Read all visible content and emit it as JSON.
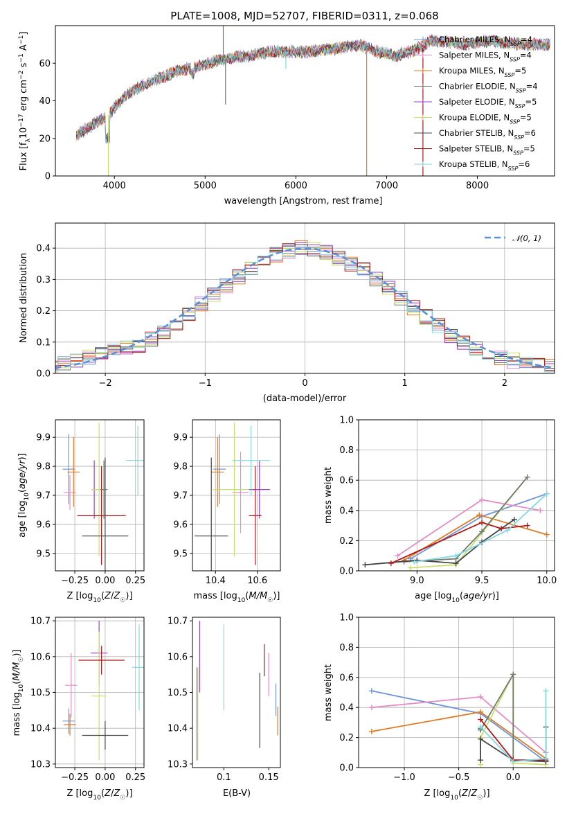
{
  "figure": {
    "title": "PLATE=1008, MJD=52707, FIBERID=0311, z=0.068"
  },
  "colors": {
    "Chabrier MILES": "#6f94d8",
    "Salpeter MILES": "#e38cc6",
    "Kroupa MILES": "#e07a23",
    "Chabrier ELODIE": "#707a70",
    "Salpeter ELODIE": "#9a3fc0",
    "Kroupa ELODIE": "#c7e06a",
    "Chabrier STELIB": "#444444",
    "Salpeter STELIB": "#b01818",
    "Kroupa STELIB": "#82d8e0",
    "normal": "#5b8fd8"
  },
  "chart_data": [
    {
      "id": "spectrum",
      "type": "line",
      "xlabel": "wavelength [Angstrom, rest frame]",
      "ylabel": "Flux [f_λ10^-17 erg cm^-2 s^-1 A^-1]",
      "xlim": [
        3350,
        8850
      ],
      "ylim": [
        0,
        80
      ],
      "xticks": [
        4000,
        5000,
        6000,
        7000,
        8000
      ],
      "yticks": [
        0,
        20,
        40,
        60
      ],
      "legend": {
        "position": "top-right",
        "entries": [
          "Chabrier MILES, N_SSP=4",
          "Salpeter MILES, N_SSP=4",
          "Kroupa MILES, N_SSP=5",
          "Chabrier ELODIE, N_SSP=4",
          "Salpeter ELODIE, N_SSP=5",
          "Kroupa ELODIE, N_SSP=5",
          "Chabrier STELIB, N_SSP=6",
          "Salpeter STELIB, N_SSP=5",
          "Kroupa STELIB, N_SSP=6"
        ]
      },
      "continuum": {
        "x": [
          3580,
          3700,
          3850,
          3950,
          4100,
          4300,
          4500,
          4700,
          4900,
          5100,
          5300,
          5500,
          5700,
          5900,
          6100,
          6300,
          6500,
          6700,
          6900,
          7100,
          7300,
          7500,
          7700,
          7900,
          8100,
          8300,
          8500,
          8800
        ],
        "y": [
          22,
          25,
          30,
          33,
          42,
          48,
          52,
          56,
          58,
          61,
          63,
          64,
          66,
          66,
          66,
          67,
          68,
          70,
          66,
          64,
          67,
          72,
          71,
          70,
          72,
          71,
          70,
          70
        ]
      },
      "spikes": [
        {
          "x": 3934,
          "y": 0,
          "series": "Kroupa ELODIE"
        },
        {
          "x": 5200,
          "y": 80,
          "series": "Chabrier ELODIE"
        },
        {
          "x": 5225,
          "y": 38,
          "series": "Chabrier ELODIE"
        },
        {
          "x": 5890,
          "y": 57,
          "series": "Kroupa STELIB"
        },
        {
          "x": 6780,
          "y": 0,
          "series": "Kroupa MILES"
        },
        {
          "x": 7400,
          "y": 0,
          "series": "Salpeter STELIB"
        }
      ]
    },
    {
      "id": "residuals",
      "type": "bar",
      "xlabel": "(data-model)/error",
      "ylabel": "Normed distribution",
      "xlim": [
        -2.5,
        2.5
      ],
      "ylim": [
        0,
        0.48
      ],
      "xticks": [
        -2,
        -1,
        0,
        1,
        2
      ],
      "yticks": [
        0.0,
        0.1,
        0.2,
        0.3,
        0.4
      ],
      "grid": true,
      "legend": {
        "position": "top-right",
        "entries": [
          "𝒩(0, 1)"
        ]
      },
      "bin_width": 0.1,
      "envelope": [
        0.02,
        0.03,
        0.04,
        0.05,
        0.06,
        0.07,
        0.08,
        0.09,
        0.11,
        0.13,
        0.16,
        0.19,
        0.22,
        0.25,
        0.28,
        0.31,
        0.34,
        0.36,
        0.38,
        0.39,
        0.4,
        0.395,
        0.385,
        0.37,
        0.35,
        0.33,
        0.3,
        0.27,
        0.24,
        0.21,
        0.18,
        0.15,
        0.12,
        0.1,
        0.08,
        0.065,
        0.05,
        0.04,
        0.035,
        0.03,
        0.025,
        0.02
      ]
    },
    {
      "id": "age_vs_Z",
      "type": "scatter",
      "xlabel": "Z [log10(Z/Z☉)]",
      "ylabel": "age  [log10(age/yr)]",
      "xlim": [
        -0.41,
        0.32
      ],
      "ylim": [
        9.44,
        9.96
      ],
      "xticks": [
        -0.25,
        0.0,
        0.25
      ],
      "yticks": [
        9.5,
        9.6,
        9.7,
        9.8,
        9.9
      ],
      "grid": true,
      "points": [
        {
          "series": "Chabrier MILES",
          "x": -0.3,
          "y": 9.79,
          "xerr": 0.05,
          "yerr": 0.12
        },
        {
          "series": "Kroupa MILES",
          "x": -0.26,
          "y": 9.78,
          "xerr": 0.05,
          "yerr": 0.12
        },
        {
          "series": "Salpeter MILES",
          "x": -0.29,
          "y": 9.71,
          "xerr": 0.05,
          "yerr": 0.06
        },
        {
          "series": "Salpeter ELODIE",
          "x": -0.09,
          "y": 9.72,
          "xerr": 0.02,
          "yerr": 0.1
        },
        {
          "series": "Kroupa ELODIE",
          "x": -0.05,
          "y": 9.72,
          "xerr": 0.06,
          "yerr": 0.23
        },
        {
          "series": "Salpeter STELIB",
          "x": -0.03,
          "y": 9.63,
          "xerr": 0.2,
          "yerr": 0.17
        },
        {
          "series": "Chabrier STELIB",
          "x": 0.0,
          "y": 9.56,
          "xerr": 0.19,
          "yerr": 0.27
        },
        {
          "series": "Chabrier ELODIE",
          "x": -0.01,
          "y": 9.72,
          "xerr": 0.03,
          "yerr": 0.1
        },
        {
          "series": "Kroupa STELIB",
          "x": 0.27,
          "y": 9.82,
          "xerr": 0.1,
          "yerr": 0.12
        }
      ]
    },
    {
      "id": "age_vs_mass",
      "type": "scatter",
      "xlabel": "mass [log10(M/M☉)]",
      "ylabel": "",
      "xlim": [
        10.29,
        10.71
      ],
      "ylim": [
        9.44,
        9.96
      ],
      "xticks": [
        10.4,
        10.6
      ],
      "yticks": [
        9.5,
        9.6,
        9.7,
        9.8,
        9.9
      ],
      "grid": true,
      "points": [
        {
          "series": "Chabrier MILES",
          "x": 10.42,
          "y": 9.79,
          "xerr": 0.03,
          "yerr": 0.12
        },
        {
          "series": "Kroupa MILES",
          "x": 10.41,
          "y": 9.78,
          "xerr": 0.03,
          "yerr": 0.12
        },
        {
          "series": "Salpeter MILES",
          "x": 10.52,
          "y": 9.71,
          "xerr": 0.04,
          "yerr": 0.14
        },
        {
          "series": "Chabrier STELIB",
          "x": 10.38,
          "y": 9.56,
          "xerr": 0.08,
          "yerr": 0.27
        },
        {
          "series": "Kroupa ELODIE",
          "x": 10.49,
          "y": 9.72,
          "xerr": 0.1,
          "yerr": 0.23
        },
        {
          "series": "Salpeter ELODIE",
          "x": 10.61,
          "y": 9.72,
          "xerr": 0.05,
          "yerr": 0.1
        },
        {
          "series": "Salpeter STELIB",
          "x": 10.59,
          "y": 9.63,
          "xerr": 0.03,
          "yerr": 0.17
        },
        {
          "series": "Kroupa STELIB",
          "x": 10.57,
          "y": 9.82,
          "xerr": 0.09,
          "yerr": 0.12
        }
      ]
    },
    {
      "id": "weight_vs_age",
      "type": "line",
      "xlabel": "age  [log10(age/yr)]",
      "ylabel": "mass weight",
      "xlim": [
        8.55,
        10.06
      ],
      "ylim": [
        0,
        1.0
      ],
      "xticks": [
        9.0,
        9.5,
        10.0
      ],
      "yticks": [
        0.0,
        0.2,
        0.4,
        0.6,
        0.8,
        1.0
      ],
      "grid": true,
      "series": [
        {
          "series": "Chabrier MILES",
          "x": [
            8.95,
            9.5,
            10.0
          ],
          "y": [
            0.08,
            0.36,
            0.51
          ]
        },
        {
          "series": "Salpeter MILES",
          "x": [
            8.85,
            9.5,
            9.95
          ],
          "y": [
            0.1,
            0.47,
            0.4
          ]
        },
        {
          "series": "Kroupa MILES",
          "x": [
            8.9,
            9.48,
            10.0
          ],
          "y": [
            0.07,
            0.37,
            0.24
          ]
        },
        {
          "series": "Kroupa ELODIE",
          "x": [
            8.95,
            9.3,
            9.85
          ],
          "y": [
            0.02,
            0.04,
            0.62
          ]
        },
        {
          "series": "Chabrier ELODIE",
          "x": [
            8.9,
            9.3,
            9.5,
            9.85
          ],
          "y": [
            0.06,
            0.08,
            0.26,
            0.62
          ]
        },
        {
          "series": "Chabrier STELIB",
          "x": [
            8.6,
            9.0,
            9.3,
            9.5,
            9.75
          ],
          "y": [
            0.04,
            0.07,
            0.05,
            0.19,
            0.34
          ]
        },
        {
          "series": "Salpeter STELIB",
          "x": [
            8.8,
            9.5,
            9.65,
            9.85
          ],
          "y": [
            0.05,
            0.32,
            0.28,
            0.3
          ]
        },
        {
          "series": "Kroupa STELIB",
          "x": [
            8.98,
            9.3,
            9.7,
            10.0
          ],
          "y": [
            0.06,
            0.1,
            0.27,
            0.51
          ]
        }
      ]
    },
    {
      "id": "mass_vs_Z",
      "type": "scatter",
      "xlabel": "Z [log10(Z/Z☉)]",
      "ylabel": "mass [log10(M/M☉)]",
      "xlim": [
        -0.41,
        0.32
      ],
      "ylim": [
        10.29,
        10.71
      ],
      "xticks": [
        -0.25,
        0.0,
        0.25
      ],
      "yticks": [
        10.3,
        10.4,
        10.5,
        10.6,
        10.7
      ],
      "grid": true,
      "points": [
        {
          "series": "Chabrier MILES",
          "x": -0.3,
          "y": 10.42,
          "xerr": 0.05,
          "yerr": 0.035
        },
        {
          "series": "Kroupa MILES",
          "x": -0.29,
          "y": 10.41,
          "xerr": 0.05,
          "yerr": 0.03
        },
        {
          "series": "Salpeter MILES",
          "x": -0.28,
          "y": 10.52,
          "xerr": 0.05,
          "yerr": 0.09
        },
        {
          "series": "Salpeter ELODIE",
          "x": -0.05,
          "y": 10.61,
          "xerr": 0.07,
          "yerr": 0.09
        },
        {
          "series": "Kroupa ELODIE",
          "x": -0.05,
          "y": 10.49,
          "xerr": 0.06,
          "yerr": 0.18
        },
        {
          "series": "Salpeter STELIB",
          "x": -0.03,
          "y": 10.59,
          "xerr": 0.19,
          "yerr": 0.04
        },
        {
          "series": "Chabrier STELIB",
          "x": 0.0,
          "y": 10.38,
          "xerr": 0.19,
          "yerr": 0.04
        },
        {
          "series": "Kroupa STELIB",
          "x": 0.28,
          "y": 10.57,
          "xerr": 0.06,
          "yerr": 0.12
        }
      ]
    },
    {
      "id": "mass_vs_ebv",
      "type": "scatter",
      "xlabel": "E(B-V)",
      "ylabel": "",
      "xlim": [
        0.065,
        0.163
      ],
      "ylim": [
        10.29,
        10.71
      ],
      "xticks": [
        0.1,
        0.15
      ],
      "yticks": [
        10.3,
        10.4,
        10.5,
        10.6,
        10.7
      ],
      "grid": false,
      "points": [
        {
          "series": "Chabrier ELODIE",
          "x": 0.07,
          "y": 10.44,
          "yerr": 0.13
        },
        {
          "series": "Kroupa ELODIE",
          "x": 0.071,
          "y": 10.44,
          "yerr": 0.13
        },
        {
          "series": "Salpeter ELODIE",
          "x": 0.073,
          "y": 10.6,
          "yerr": 0.1
        },
        {
          "series": "Kroupa STELIB",
          "x": 0.1,
          "y": 10.57,
          "yerr": 0.12
        },
        {
          "series": "Chabrier STELIB",
          "x": 0.14,
          "y": 10.45,
          "yerr": 0.105
        },
        {
          "series": "Salpeter STELIB",
          "x": 0.145,
          "y": 10.59,
          "yerr": 0.045
        },
        {
          "series": "Salpeter MILES",
          "x": 0.15,
          "y": 10.55,
          "yerr": 0.06
        },
        {
          "series": "Chabrier MILES",
          "x": 0.158,
          "y": 10.48,
          "yerr": 0.045
        },
        {
          "series": "Kroupa MILES",
          "x": 0.16,
          "y": 10.42,
          "yerr": 0.04
        }
      ]
    },
    {
      "id": "weight_vs_Z",
      "type": "line",
      "xlabel": "Z [log10(Z/Z☉)]",
      "ylabel": "mass weight",
      "xlim": [
        -1.42,
        0.38
      ],
      "ylim": [
        0,
        1.0
      ],
      "xticks": [
        -1.0,
        -0.5,
        0.0
      ],
      "yticks": [
        0.0,
        0.2,
        0.4,
        0.6,
        0.8,
        1.0
      ],
      "grid": true,
      "series": [
        {
          "series": "Chabrier MILES",
          "x": [
            -1.3,
            -0.3,
            0.3
          ],
          "y": [
            0.51,
            0.36,
            0.04
          ]
        },
        {
          "series": "Salpeter MILES",
          "x": [
            -1.3,
            -0.3,
            0.3
          ],
          "y": [
            0.4,
            0.47,
            0.1
          ]
        },
        {
          "series": "Kroupa MILES",
          "x": [
            -1.3,
            -0.3,
            0.3
          ],
          "y": [
            0.24,
            0.37,
            0.06
          ]
        },
        {
          "series": "Kroupa ELODIE",
          "x": [
            -0.3,
            -0.3,
            0.0,
            0.0,
            0.3
          ],
          "y": [
            0.02,
            0.2,
            0.62,
            0.03,
            0.02
          ]
        },
        {
          "series": "Chabrier ELODIE",
          "x": [
            -0.3,
            -0.3,
            0.0,
            0.0
          ],
          "y": [
            0.26,
            0.25,
            0.62,
            0.05
          ]
        },
        {
          "series": "Chabrier STELIB",
          "x": [
            -0.3,
            -0.3,
            0.0,
            0.3,
            0.3
          ],
          "y": [
            0.05,
            0.19,
            0.05,
            0.04,
            0.27
          ]
        },
        {
          "series": "Salpeter STELIB",
          "x": [
            -0.3,
            0.0,
            0.3
          ],
          "y": [
            0.32,
            0.05,
            0.05
          ]
        },
        {
          "series": "Kroupa STELIB",
          "x": [
            -0.3,
            0.0,
            0.3,
            0.3
          ],
          "y": [
            0.27,
            0.04,
            0.06,
            0.51
          ]
        }
      ]
    }
  ]
}
